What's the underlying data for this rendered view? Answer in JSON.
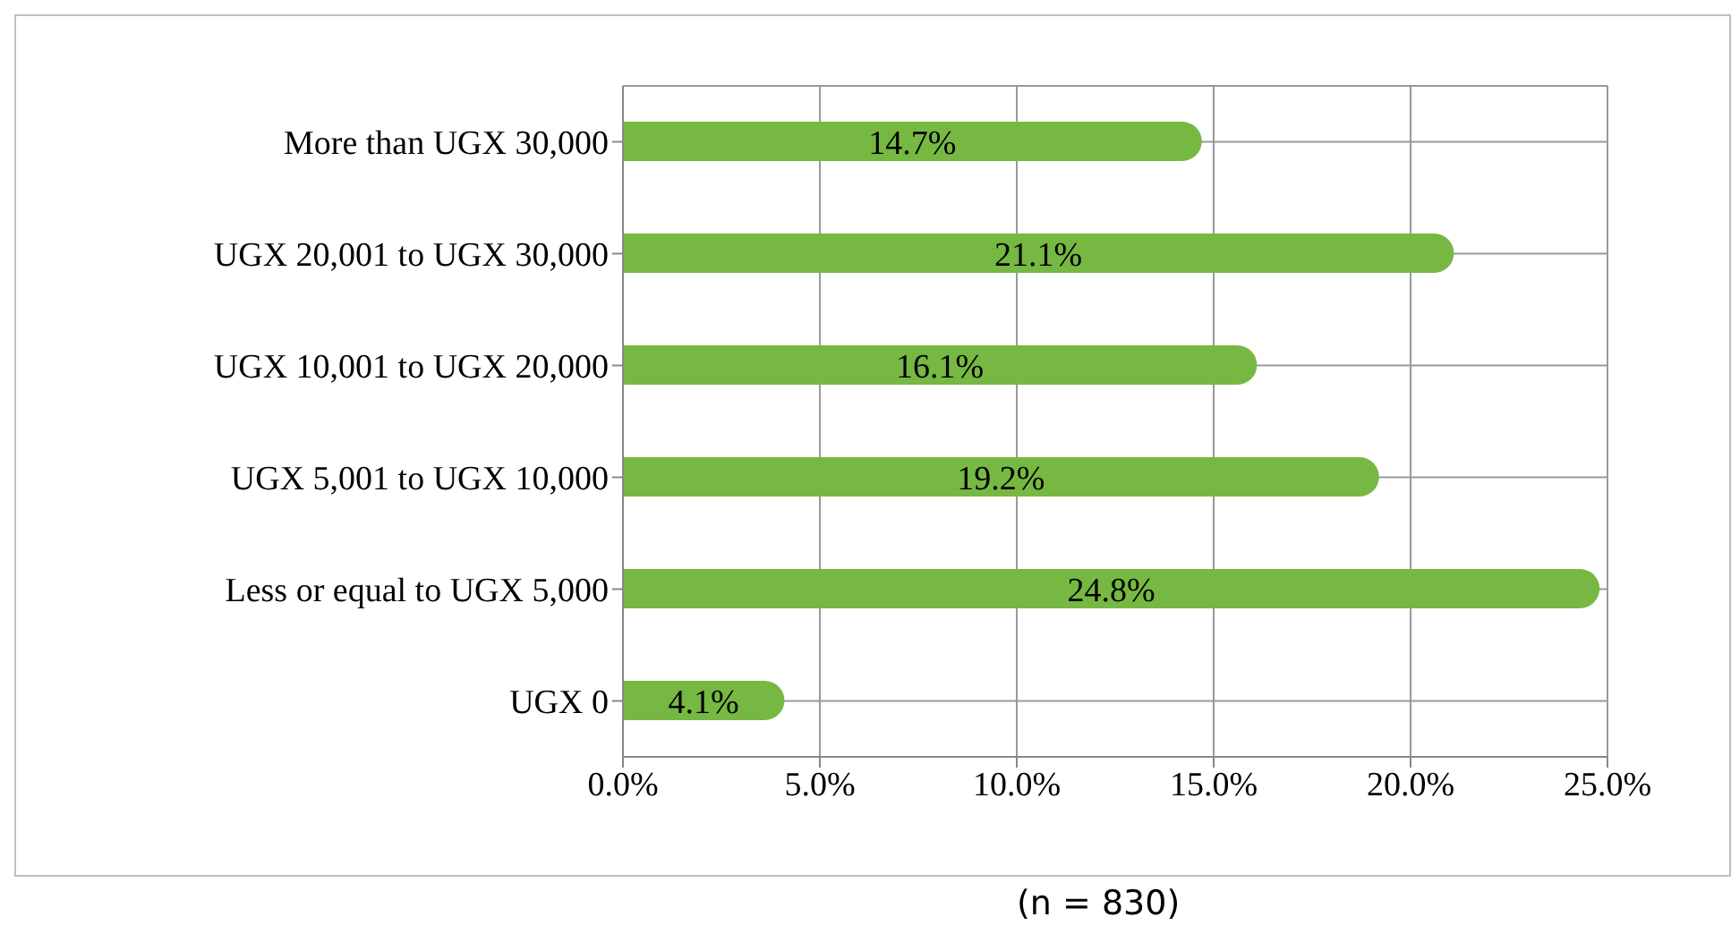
{
  "chart_data": {
    "type": "bar",
    "orientation": "horizontal",
    "categories": [
      "More than UGX 30,000",
      "UGX 20,001 to UGX 30,000",
      "UGX 10,001 to UGX 20,000",
      "UGX 5,001 to UGX 10,000",
      "Less or equal to UGX 5,000",
      "UGX 0"
    ],
    "values": [
      14.7,
      21.1,
      16.1,
      19.2,
      24.8,
      4.1
    ],
    "value_labels": [
      "14.7%",
      "21.1%",
      "16.1%",
      "19.2%",
      "24.8%",
      "4.1%"
    ],
    "color": "#77b843",
    "xlim": [
      0,
      25
    ],
    "xticks": [
      {
        "value": 0,
        "label": "0.0%"
      },
      {
        "value": 5,
        "label": "5.0%"
      },
      {
        "value": 10,
        "label": "10.0%"
      },
      {
        "value": 15,
        "label": "15.0%"
      },
      {
        "value": 20,
        "label": "20.0%"
      },
      {
        "value": 25,
        "label": "25.0%"
      }
    ],
    "grid": true,
    "annotations": [
      "(n = 830)"
    ]
  }
}
